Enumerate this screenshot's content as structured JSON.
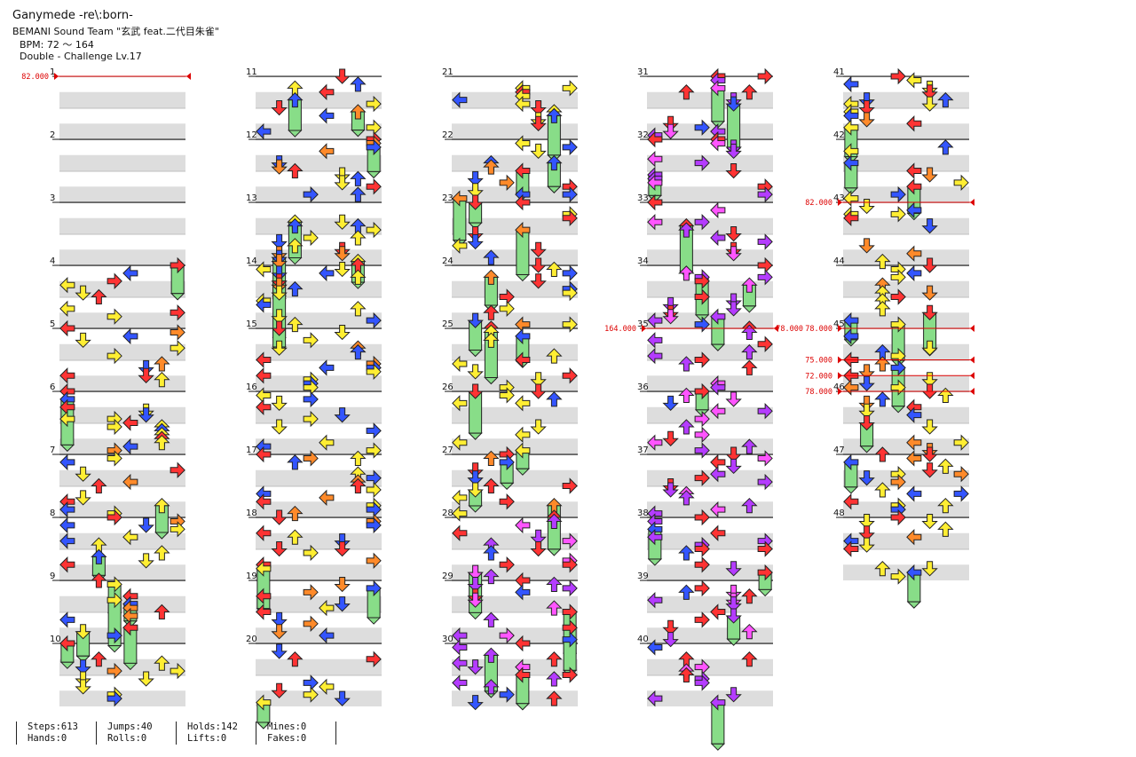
{
  "song": {
    "title": "Ganymede -re\\:born-",
    "artist": "BEMANI Sound Team \"玄武 feat.二代目朱雀\"",
    "bpm": "BPM: 72 ～ 164",
    "difficulty": "Double - Challenge Lv.17"
  },
  "measures": [
    1,
    2,
    3,
    4,
    5,
    6,
    7,
    8,
    9,
    10,
    11,
    12,
    13,
    14,
    15,
    16,
    17,
    18,
    19,
    20,
    21,
    22,
    23,
    24,
    25,
    26,
    27,
    28,
    29,
    30,
    31,
    32,
    33,
    34,
    35,
    36,
    37,
    38,
    39,
    40,
    41,
    42,
    43,
    44,
    45,
    46,
    47,
    48
  ],
  "bpm_changes": [
    {
      "measure": 1,
      "label": "82.000",
      "side": "left"
    },
    {
      "measure": 35,
      "label": "164.000",
      "side": "left"
    },
    {
      "measure": 35,
      "label": "78.000",
      "side": "right"
    },
    {
      "measure": 43,
      "label": "82.000",
      "side": "left"
    },
    {
      "measure": 45,
      "label": "78.000",
      "side": "left"
    },
    {
      "measure": 45.5,
      "label": "75.000",
      "side": "left"
    },
    {
      "measure": 45.75,
      "label": "72.000",
      "side": "left"
    },
    {
      "measure": 46,
      "label": "78.000",
      "side": "left"
    }
  ],
  "stats": {
    "steps": "Steps:613",
    "hands": "Hands:0",
    "jumps": "Jumps:40",
    "rolls": "Rolls:0",
    "holds": "Holds:142",
    "lifts": "Lifts:0",
    "mines": "Mines:0",
    "fakes": "Fakes:0"
  },
  "colors": {
    "q4": "#ff3333",
    "q8": "#3355ff",
    "q12": "#b43cff",
    "q16": "#ffee33",
    "q24": "#ff55ff",
    "q32": "#ff8a2a",
    "hold": "#88dd88",
    "bpm_line": "#dd0000",
    "stripe": "#dddddd"
  },
  "icons": {
    "left": "left-arrow-icon",
    "down": "down-arrow-icon",
    "up": "up-arrow-icon",
    "right": "right-arrow-icon"
  }
}
